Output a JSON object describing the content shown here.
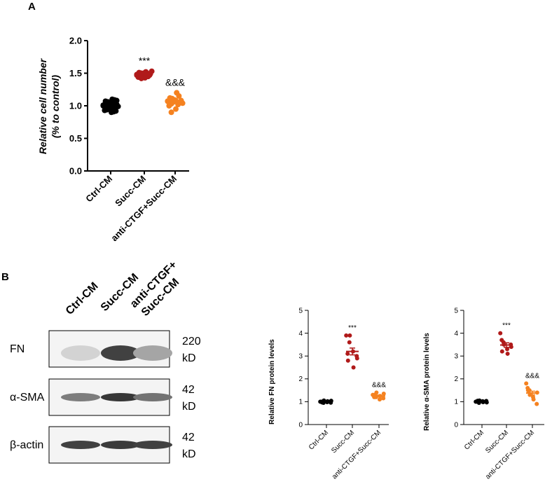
{
  "panels": {
    "a": "A",
    "b": "B"
  },
  "colors": {
    "ctrl": "#000000",
    "succ": "#b01a1a",
    "anti": "#f58220"
  },
  "chart_data": [
    {
      "id": "A",
      "type": "scatter",
      "ylabel_line1": "Relative cell number",
      "ylabel_line2": "(% to control)",
      "ylim": [
        0,
        2.0
      ],
      "yticks": [
        "0.0",
        "0.5",
        "1.0",
        "1.5",
        "2.0"
      ],
      "categories": [
        "Ctrl-CM",
        "Succ-CM",
        "anti-CTGF+Succ-CM"
      ],
      "significance": [
        "",
        "***",
        "&&&"
      ],
      "series": [
        {
          "values": [
            1.0,
            0.95,
            1.05,
            0.9,
            1.1,
            0.98,
            1.02,
            0.93,
            1.07,
            0.96,
            1.04,
            0.91,
            1.09,
            0.99,
            1.01,
            0.94,
            1.06,
            0.97,
            1.03,
            0.92,
            1.08,
            1.0
          ]
        },
        {
          "values": [
            1.48,
            1.45,
            1.5,
            1.43,
            1.52,
            1.47,
            1.49,
            1.44,
            1.51,
            1.46,
            1.48,
            1.5,
            1.45,
            1.53,
            1.47,
            1.49,
            1.42,
            1.51,
            1.46,
            1.48
          ]
        },
        {
          "values": [
            1.07,
            1.03,
            1.1,
            0.95,
            1.2,
            1.05,
            1.08,
            1.0,
            1.12,
            1.06,
            1.09,
            1.02,
            1.15,
            1.04,
            1.07,
            0.9,
            1.11,
            1.08
          ]
        }
      ],
      "means": [
        1.0,
        1.48,
        1.07
      ]
    },
    {
      "id": "B-FN",
      "type": "scatter",
      "ylabel": "Relative FN protein levels",
      "ylim": [
        0,
        5
      ],
      "yticks": [
        "0",
        "1",
        "2",
        "3",
        "4",
        "5"
      ],
      "categories": [
        "Ctrl-CM",
        "Succ-CM",
        "anti-CTGF+Succ-CM"
      ],
      "significance": [
        "",
        "***",
        "&&&"
      ],
      "series": [
        {
          "values": [
            1.0,
            0.95,
            1.05,
            0.98,
            1.02,
            0.96,
            1.04,
            1.0,
            0.97
          ]
        },
        {
          "values": [
            3.9,
            3.6,
            3.9,
            3.2,
            2.5,
            3.0,
            2.9,
            3.1,
            2.8
          ]
        },
        {
          "values": [
            1.3,
            1.2,
            1.4,
            1.1,
            1.25,
            1.15,
            1.35,
            1.2,
            1.3
          ]
        }
      ],
      "means": [
        1.0,
        3.2,
        1.25
      ],
      "sem": [
        0.02,
        0.15,
        0.04
      ]
    },
    {
      "id": "B-SMA",
      "type": "scatter",
      "ylabel": "Relative α-SMA protein levels",
      "ylim": [
        0,
        5
      ],
      "yticks": [
        "0",
        "1",
        "2",
        "3",
        "4",
        "5"
      ],
      "categories": [
        "Ctrl-CM",
        "Succ-CM",
        "anti-CTGF+Succ-CM"
      ],
      "significance": [
        "",
        "***",
        "&&&"
      ],
      "series": [
        {
          "values": [
            1.0,
            0.95,
            1.05,
            1.02,
            0.98,
            1.03,
            0.97,
            1.0,
            1.04
          ]
        },
        {
          "values": [
            4.0,
            3.6,
            3.5,
            3.3,
            3.1,
            3.5,
            3.4,
            3.7,
            3.2
          ]
        },
        {
          "values": [
            1.8,
            1.5,
            1.3,
            1.2,
            1.1,
            0.9,
            1.4,
            1.6,
            1.5
          ]
        }
      ],
      "means": [
        1.0,
        3.48,
        1.38
      ],
      "sem": [
        0.02,
        0.1,
        0.08
      ]
    }
  ],
  "blot": {
    "lanes": [
      "Ctrl-CM",
      "Succ-CM",
      "anti-CTGF+",
      "Succ-CM"
    ],
    "rows": [
      {
        "protein": "FN",
        "size": "220",
        "unit": "kD",
        "intensity": [
          0.12,
          0.85,
          0.35
        ]
      },
      {
        "protein": "α-SMA",
        "size": "42",
        "unit": "kD",
        "intensity": [
          0.55,
          0.9,
          0.6
        ]
      },
      {
        "protein": "β-actin",
        "size": "42",
        "unit": "kD",
        "intensity": [
          0.85,
          0.88,
          0.85
        ]
      }
    ]
  }
}
